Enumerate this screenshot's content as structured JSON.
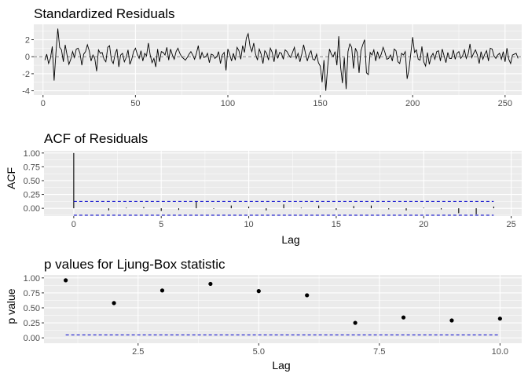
{
  "chart_data": [
    {
      "type": "line",
      "title": "Standardized Residuals",
      "xlabel": "",
      "ylabel": "",
      "xlim": [
        -5,
        259
      ],
      "ylim": [
        -4.5,
        3.8
      ],
      "x_ticks": [
        0,
        50,
        100,
        150,
        200,
        250
      ],
      "y_ticks": [
        -4,
        -2,
        0,
        2
      ],
      "x_tick_labels": [
        "0",
        "50",
        "100",
        "150",
        "200",
        "250"
      ],
      "y_tick_labels": [
        "-4",
        "-2",
        "0",
        "2"
      ],
      "reference_line": 0,
      "line_color": "#000000",
      "reference_color": "#7f7f7f",
      "panel_color": "#ebebeb",
      "grid": true,
      "series": [
        {
          "values": [
            -0.4,
            0.3,
            -0.8,
            -0.2,
            1.2,
            -2.8,
            0.5,
            3.3,
            1.1,
            0.8,
            -0.6,
            1.4,
            0.2,
            -0.9,
            -0.3,
            0.6,
            -0.1,
            0.9,
            1.0,
            0.4,
            -1.0,
            0.3,
            0.6,
            1.4,
            0.7,
            -0.5,
            0.2,
            -0.2,
            -1.7,
            0.8,
            0.4,
            0.5,
            -0.3,
            -0.6,
            1.1,
            1.3,
            -0.4,
            -0.8,
            0.3,
            0.9,
            -1.2,
            0.2,
            0.4,
            -0.6,
            -0.1,
            0.8,
            -0.9,
            -0.3,
            0.6,
            1.0,
            0.3,
            -0.2,
            0.7,
            -0.5,
            0.4,
            0.1,
            1.6,
            0.2,
            -0.7,
            -0.2,
            -1.2,
            0.9,
            -0.6,
            0.6,
            0.5,
            0.2,
            1.1,
            -0.4,
            0.9,
            0.2,
            -0.3,
            0.6,
            1.0,
            0.4,
            0.0,
            -0.2,
            -0.4,
            -0.1,
            0.3,
            0.6,
            0.2,
            -0.3,
            0.4,
            1.3,
            -0.3,
            0.5,
            -0.1,
            0.0,
            0.4,
            -0.7,
            0.3,
            0.2,
            -0.2,
            0.0,
            0.6,
            -0.8,
            0.2,
            0.5,
            -1.6,
            0.9,
            0.3,
            -0.5,
            0.4,
            -0.4,
            1.1,
            0.7,
            -0.3,
            1.3,
            0.5,
            2.2,
            2.7,
            1.2,
            0.6,
            1.6,
            0.3,
            -0.4,
            0.9,
            0.3,
            -0.8,
            0.7,
            0.4,
            -0.4,
            1.0,
            0.5,
            -0.6,
            0.9,
            -0.2,
            0.5,
            0.4,
            -0.3,
            0.8,
            0.6,
            0.2,
            -0.1,
            0.5,
            1.1,
            -0.2,
            0.4,
            -0.6,
            0.3,
            1.4,
            0.4,
            -0.5,
            0.3,
            0.7,
            -0.3,
            -0.4,
            0.3,
            -0.7,
            -1.1,
            -3.0,
            -0.4,
            -4.0,
            -1.2,
            0.9,
            0.3,
            0.0,
            0.6,
            -1.0,
            2.4,
            -1.2,
            -3.1,
            -0.1,
            -3.8,
            0.6,
            1.5,
            1.1,
            -1.4,
            1.0,
            0.5,
            -1.9,
            0.7,
            1.4,
            2.0,
            -1.9,
            -2.1,
            0.5,
            0.2,
            0.8,
            -0.5,
            0.6,
            -0.2,
            0.3,
            1.1,
            0.5,
            -0.3,
            -0.2,
            0.2,
            -0.5,
            0.9,
            0.7,
            -0.6,
            -0.8,
            0.4,
            0.2,
            0.6,
            -2.6,
            -1.5,
            0.4,
            2.3,
            0.5,
            0.8,
            -0.3,
            -0.4,
            1.2,
            -0.6,
            -1.1,
            0.5,
            -0.9,
            0.0,
            0.4,
            -0.3,
            0.6,
            0.7,
            -0.5,
            0.9,
            0.1,
            -0.7,
            0.5,
            -0.2,
            -0.2,
            0.8,
            -0.3,
            0.4,
            0.6,
            -0.2,
            0.1,
            0.8,
            -0.2,
            0.3,
            1.5,
            -0.1,
            0.4,
            0.8,
            0.2,
            -0.8,
            0.6,
            -0.3,
            0.3,
            0.7,
            -0.5,
            1.0,
            0.9,
            0.1,
            -0.2,
            0.2,
            0.4,
            -0.3,
            0.6,
            -0.6,
            1.0,
            -0.3,
            -0.8,
            0.2,
            0.3,
            0.4,
            -0.2
          ]
        }
      ]
    },
    {
      "type": "bar",
      "title": "ACF of Residuals",
      "xlabel": "Lag",
      "ylabel": "ACF",
      "xlim": [
        -1.7,
        25.6
      ],
      "ylim": [
        -0.14,
        1.04
      ],
      "x_ticks": [
        0,
        5,
        10,
        15,
        20,
        25
      ],
      "y_ticks": [
        0.0,
        0.25,
        0.5,
        0.75,
        1.0
      ],
      "x_tick_labels": [
        "0",
        "5",
        "10",
        "15",
        "20",
        "25"
      ],
      "y_tick_labels": [
        "0.00",
        "0.25",
        "0.50",
        "0.75",
        "1.00"
      ],
      "confidence_bounds": [
        0.125,
        -0.125
      ],
      "bound_color": "#0000cc",
      "bar_color": "#000000",
      "panel_color": "#ebebeb",
      "grid": true,
      "lags": [
        0,
        1,
        2,
        3,
        4,
        5,
        6,
        7,
        8,
        9,
        10,
        11,
        12,
        13,
        14,
        15,
        16,
        17,
        18,
        19,
        20,
        21,
        22,
        23,
        24
      ],
      "values": [
        1.0,
        0.0,
        -0.04,
        0.01,
        0.02,
        -0.05,
        -0.03,
        0.12,
        -0.01,
        0.05,
        0.03,
        -0.04,
        0.07,
        0.01,
        0.05,
        -0.03,
        0.04,
        0.05,
        -0.02,
        -0.04,
        0.01,
        -0.02,
        -0.09,
        -0.11,
        0.03
      ]
    },
    {
      "type": "scatter",
      "title": "p values for Ljung-Box statistic",
      "xlabel": "Lag",
      "ylabel": "p value",
      "xlim": [
        0.55,
        10.45
      ],
      "ylim": [
        -0.09,
        1.05
      ],
      "x_ticks": [
        2.5,
        5.0,
        7.5,
        10.0
      ],
      "y_ticks": [
        0.0,
        0.25,
        0.5,
        0.75,
        1.0
      ],
      "x_tick_labels": [
        "2.5",
        "5.0",
        "7.5",
        "10.0"
      ],
      "y_tick_labels": [
        "0.00",
        "0.25",
        "0.50",
        "0.75",
        "1.00"
      ],
      "significance_line": 0.05,
      "line_color": "#0000cc",
      "point_color": "#000000",
      "panel_color": "#ebebeb",
      "grid": true,
      "x": [
        1,
        2,
        3,
        4,
        5,
        6,
        7,
        8,
        9,
        10
      ],
      "y": [
        0.96,
        0.58,
        0.79,
        0.9,
        0.78,
        0.71,
        0.25,
        0.34,
        0.29,
        0.32
      ]
    }
  ]
}
